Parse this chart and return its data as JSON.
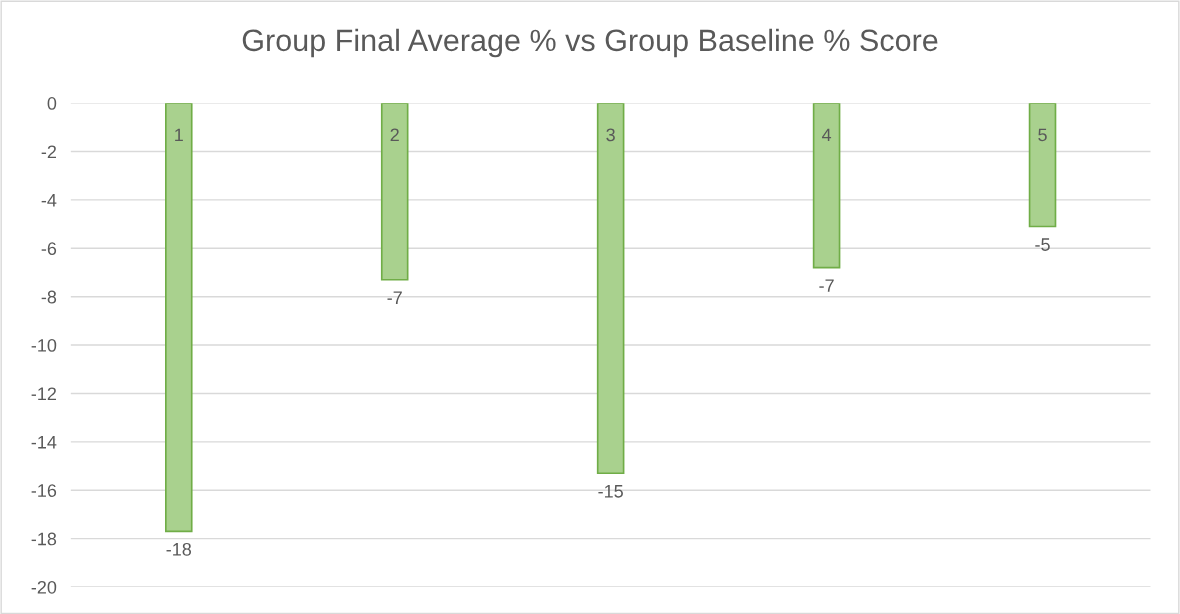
{
  "chart_data": {
    "type": "bar",
    "title": "Group Final Average % vs Group Baseline % Score",
    "categories": [
      "1",
      "2",
      "3",
      "4",
      "5"
    ],
    "values": [
      -17.7,
      -7.3,
      -15.3,
      -6.8,
      -5.1
    ],
    "value_labels": [
      "-18",
      "-7",
      "-15",
      "-7",
      "-5"
    ],
    "color": "#a9d18e",
    "ylim": [
      -20,
      0
    ],
    "yticks": [
      -20,
      -18,
      -16,
      -14,
      -12,
      -10,
      -8,
      -6,
      -4,
      -2,
      0
    ],
    "grid": "y",
    "legend": false
  }
}
